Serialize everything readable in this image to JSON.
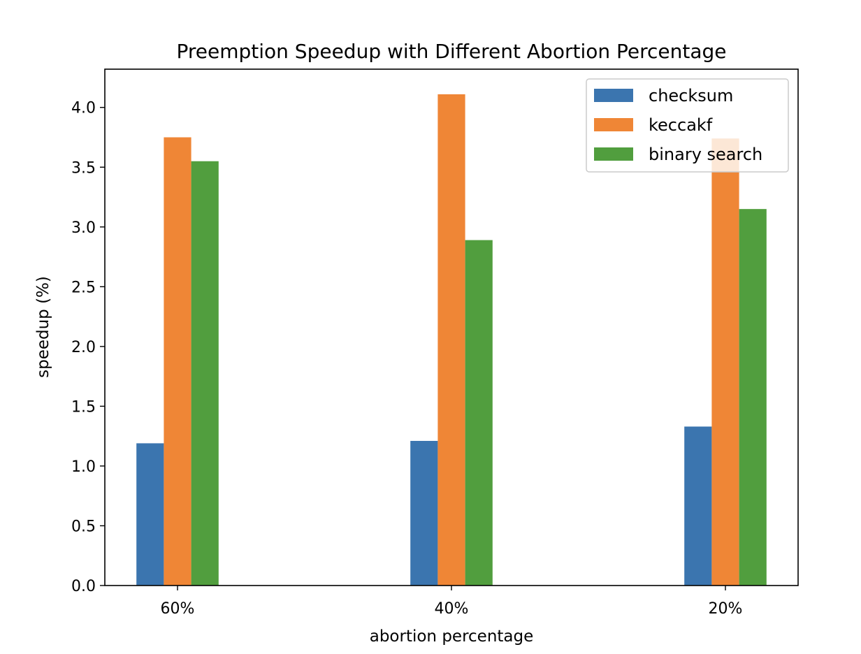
{
  "chart_data": {
    "type": "bar",
    "title": "Preemption Speedup with Different Abortion Percentage",
    "xlabel": "abortion percentage",
    "ylabel": "speedup (%)",
    "categories": [
      "60%",
      "40%",
      "20%"
    ],
    "series": [
      {
        "name": "checksum",
        "color": "#3b75af",
        "values": [
          1.19,
          1.21,
          1.33
        ]
      },
      {
        "name": "keccakf",
        "color": "#ef8636",
        "values": [
          3.75,
          4.11,
          3.74
        ]
      },
      {
        "name": "binary search",
        "color": "#519e3e",
        "values": [
          3.55,
          2.89,
          3.15
        ]
      }
    ],
    "ylim": [
      0,
      4.32
    ],
    "yticks": [
      0.0,
      0.5,
      1.0,
      1.5,
      2.0,
      2.5,
      3.0,
      3.5,
      4.0
    ],
    "ytick_labels": [
      "0.0",
      "0.5",
      "1.0",
      "1.5",
      "2.0",
      "2.5",
      "3.0",
      "3.5",
      "4.0"
    ],
    "grid": false,
    "legend_position": "top-right"
  }
}
